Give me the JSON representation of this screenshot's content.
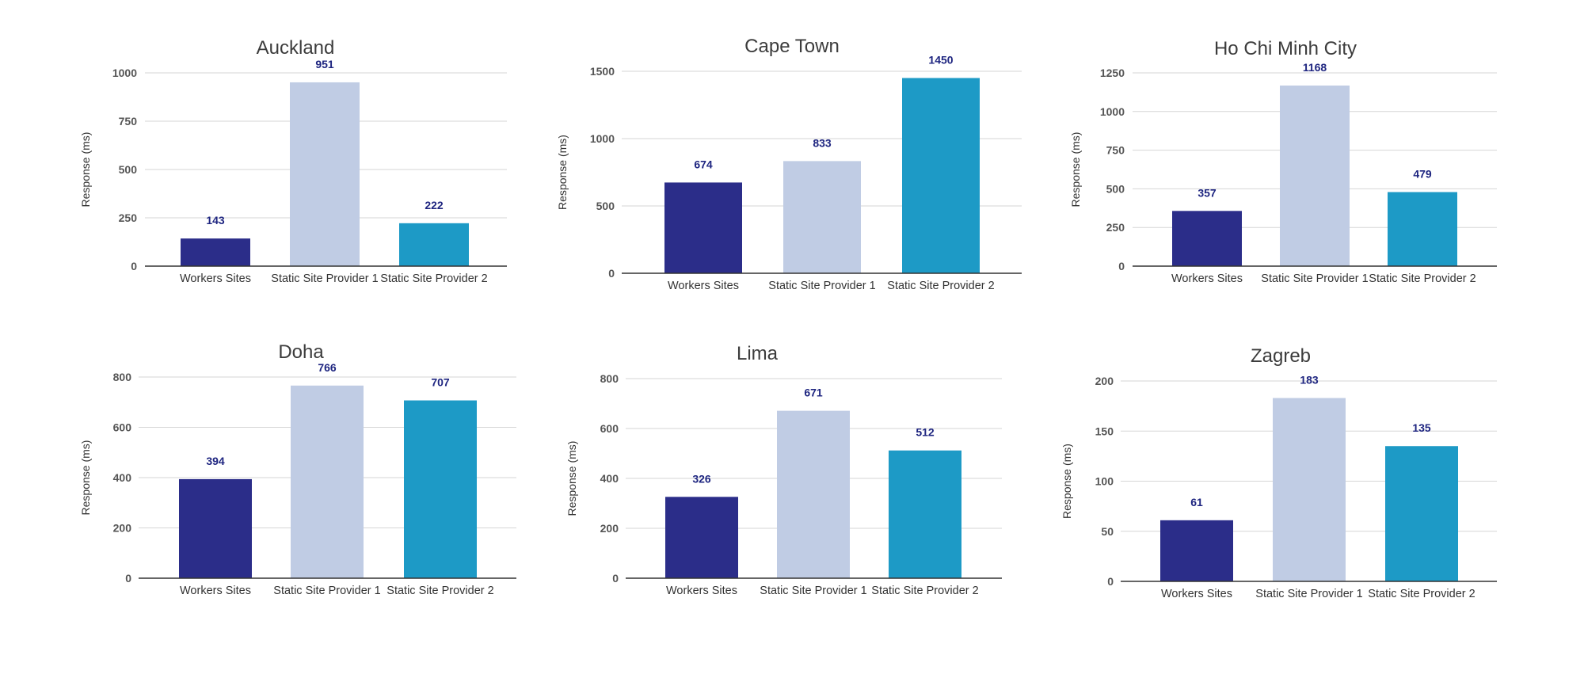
{
  "colors": {
    "Workers Sites": "#2b2d89",
    "Static Site Provider 1": "#c0cce4",
    "Static Site Provider 2": "#1d9ac6"
  },
  "chart_data": [
    {
      "type": "bar",
      "title": "Auckland",
      "ylabel": "Response (ms)",
      "categories": [
        "Workers Sites",
        "Static Site Provider 1",
        "Static Site Provider 2"
      ],
      "values": [
        143,
        951,
        222
      ],
      "ylim": [
        0,
        1000
      ],
      "yticks": [
        0,
        250,
        500,
        750,
        1000
      ],
      "grid": true
    },
    {
      "type": "bar",
      "title": "Cape Town",
      "ylabel": "Response (ms)",
      "categories": [
        "Workers Sites",
        "Static Site Provider 1",
        "Static Site Provider 2"
      ],
      "values": [
        674,
        833,
        1450
      ],
      "ylim": [
        0,
        1500
      ],
      "yticks": [
        0,
        500,
        1000,
        1500
      ],
      "grid": true
    },
    {
      "type": "bar",
      "title": "Ho Chi Minh City",
      "ylabel": "Response (ms)",
      "categories": [
        "Workers Sites",
        "Static Site Provider 1",
        "Static Site Provider 2"
      ],
      "values": [
        357,
        1168,
        479
      ],
      "ylim": [
        0,
        1250
      ],
      "yticks": [
        0,
        250,
        500,
        750,
        1000,
        1250
      ],
      "grid": true
    },
    {
      "type": "bar",
      "title": "Doha",
      "ylabel": "Response (ms)",
      "categories": [
        "Workers Sites",
        "Static Site Provider 1",
        "Static Site Provider 2"
      ],
      "values": [
        394,
        766,
        707
      ],
      "ylim": [
        0,
        800
      ],
      "yticks": [
        0,
        200,
        400,
        600,
        800
      ],
      "grid": true
    },
    {
      "type": "bar",
      "title": "Lima",
      "ylabel": "Response (ms)",
      "categories": [
        "Workers Sites",
        "Static Site Provider 1",
        "Static Site Provider 2"
      ],
      "values": [
        326,
        671,
        512
      ],
      "ylim": [
        0,
        800
      ],
      "yticks": [
        0,
        200,
        400,
        600,
        800
      ],
      "grid": true
    },
    {
      "type": "bar",
      "title": "Zagreb",
      "ylabel": "Response (ms)",
      "categories": [
        "Workers Sites",
        "Static Site Provider 1",
        "Static Site Provider 2"
      ],
      "values": [
        61,
        183,
        135
      ],
      "ylim": [
        0,
        200
      ],
      "yticks": [
        0,
        50,
        100,
        150,
        200
      ],
      "grid": true
    }
  ]
}
